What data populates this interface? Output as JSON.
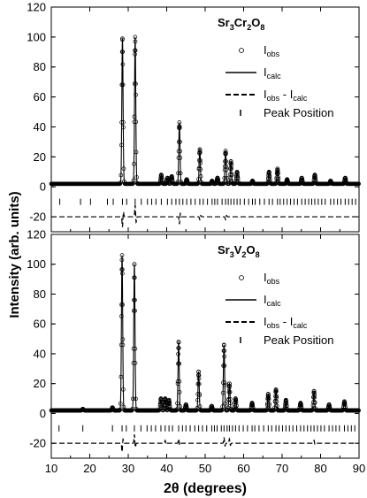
{
  "figure": {
    "xlabel": "2θ (degrees)",
    "ylabel": "Intensity (arb. units)"
  },
  "legend": [
    {
      "key": "obs",
      "base": "I",
      "sub": "obs",
      "style": "open-circle"
    },
    {
      "key": "calc",
      "base": "I",
      "sub": "calc",
      "style": "solid-line"
    },
    {
      "key": "diff",
      "base": "I",
      "sub": "obs",
      "mid": " - I",
      "sub2": "calc",
      "style": "dashed-line"
    },
    {
      "key": "peaks",
      "text": "Peak Position",
      "style": "tick"
    }
  ],
  "chart_data": [
    {
      "type": "line",
      "title": {
        "parts": [
          "Sr",
          "3",
          "Cr",
          "2",
          "O",
          "8"
        ]
      },
      "xlim": [
        10,
        90
      ],
      "ylim": [
        -30,
        120
      ],
      "yticks": [
        -20,
        0,
        20,
        40,
        60,
        80,
        100,
        120
      ],
      "xticks": [
        10,
        20,
        30,
        40,
        50,
        60,
        70,
        80,
        90
      ],
      "difference_offset": -20,
      "tick_row_y": -10,
      "background": 2,
      "peaks": [
        {
          "x": 28.5,
          "y": 99
        },
        {
          "x": 31.8,
          "y": 100
        },
        {
          "x": 38.6,
          "y": 8
        },
        {
          "x": 40.2,
          "y": 6
        },
        {
          "x": 41.3,
          "y": 7
        },
        {
          "x": 43.3,
          "y": 43
        },
        {
          "x": 45.2,
          "y": 5
        },
        {
          "x": 48.6,
          "y": 25
        },
        {
          "x": 51.8,
          "y": 4
        },
        {
          "x": 53.2,
          "y": 6
        },
        {
          "x": 55.3,
          "y": 24
        },
        {
          "x": 56.7,
          "y": 17
        },
        {
          "x": 58.3,
          "y": 10
        },
        {
          "x": 62.3,
          "y": 4
        },
        {
          "x": 66.6,
          "y": 10
        },
        {
          "x": 68.8,
          "y": 12
        },
        {
          "x": 71.3,
          "y": 5
        },
        {
          "x": 75.1,
          "y": 6
        },
        {
          "x": 78.5,
          "y": 8
        },
        {
          "x": 82.6,
          "y": 4
        },
        {
          "x": 86.4,
          "y": 6
        }
      ],
      "peak_positions": [
        12.2,
        17.6,
        20.2,
        24.6,
        26.1,
        28.5,
        29.6,
        31.8,
        33.4,
        35.0,
        36.1,
        37.2,
        38.6,
        40.2,
        41.3,
        42.4,
        43.3,
        44.2,
        45.2,
        46.3,
        47.4,
        48.6,
        49.5,
        50.6,
        51.8,
        52.5,
        53.2,
        54.4,
        55.3,
        56.0,
        56.7,
        57.5,
        58.3,
        59.1,
        60.2,
        61.3,
        62.3,
        63.0,
        64.2,
        65.4,
        66.6,
        67.5,
        68.8,
        69.5,
        70.4,
        71.3,
        72.2,
        73.1,
        74.0,
        75.1,
        76.0,
        76.9,
        77.7,
        78.5,
        79.4,
        80.3,
        81.2,
        82.6,
        83.5,
        84.4,
        85.3,
        86.4,
        87.3,
        88.2,
        89.1
      ],
      "diff_spikes": [
        {
          "x": 28.5,
          "y": -7
        },
        {
          "x": 31.8,
          "y": 8
        },
        {
          "x": 43.3,
          "y": -5
        },
        {
          "x": 48.6,
          "y": -2
        },
        {
          "x": 55.3,
          "y": -2
        }
      ]
    },
    {
      "type": "line",
      "title": {
        "parts": [
          "Sr",
          "3",
          "V",
          "2",
          "O",
          "8"
        ]
      },
      "xlim": [
        10,
        90
      ],
      "ylim": [
        -30,
        120
      ],
      "yticks": [
        -20,
        0,
        20,
        40,
        60,
        80,
        100,
        120
      ],
      "xticks": [
        10,
        20,
        30,
        40,
        50,
        60,
        70,
        80,
        90
      ],
      "difference_offset": -20,
      "tick_row_y": -10,
      "background": 2,
      "peaks": [
        {
          "x": 18.2,
          "y": 3
        },
        {
          "x": 25.9,
          "y": 4
        },
        {
          "x": 28.4,
          "y": 106
        },
        {
          "x": 31.6,
          "y": 100
        },
        {
          "x": 38.5,
          "y": 10
        },
        {
          "x": 39.6,
          "y": 10
        },
        {
          "x": 40.6,
          "y": 9
        },
        {
          "x": 43.1,
          "y": 48
        },
        {
          "x": 45.0,
          "y": 6
        },
        {
          "x": 48.3,
          "y": 28
        },
        {
          "x": 51.7,
          "y": 5
        },
        {
          "x": 54.9,
          "y": 46
        },
        {
          "x": 56.3,
          "y": 20
        },
        {
          "x": 57.9,
          "y": 10
        },
        {
          "x": 62.2,
          "y": 7
        },
        {
          "x": 66.4,
          "y": 13
        },
        {
          "x": 68.4,
          "y": 16
        },
        {
          "x": 71.0,
          "y": 9
        },
        {
          "x": 74.8,
          "y": 7
        },
        {
          "x": 78.3,
          "y": 15
        },
        {
          "x": 82.2,
          "y": 6
        },
        {
          "x": 86.2,
          "y": 8
        }
      ],
      "peak_positions": [
        12.0,
        18.2,
        25.9,
        28.4,
        29.5,
        31.6,
        33.3,
        34.9,
        36.0,
        37.1,
        38.5,
        39.6,
        40.6,
        41.5,
        43.1,
        44.1,
        45.0,
        46.1,
        47.3,
        48.3,
        49.3,
        50.4,
        51.7,
        52.4,
        53.1,
        54.2,
        54.9,
        55.7,
        56.3,
        57.1,
        57.9,
        58.8,
        59.9,
        61.0,
        62.2,
        62.9,
        64.0,
        65.2,
        66.4,
        67.3,
        68.4,
        69.2,
        70.1,
        71.0,
        71.9,
        72.8,
        73.8,
        74.8,
        75.7,
        76.6,
        77.5,
        78.3,
        79.2,
        80.1,
        81.0,
        82.2,
        83.1,
        84.0,
        84.9,
        86.2,
        87.1,
        88.0,
        88.9
      ],
      "diff_spikes": [
        {
          "x": 28.4,
          "y": -6
        },
        {
          "x": 31.6,
          "y": 6
        },
        {
          "x": 39.6,
          "y": 2
        },
        {
          "x": 43.1,
          "y": 3
        },
        {
          "x": 54.9,
          "y": 4
        },
        {
          "x": 56.3,
          "y": 3
        },
        {
          "x": 78.3,
          "y": 2
        }
      ]
    }
  ]
}
